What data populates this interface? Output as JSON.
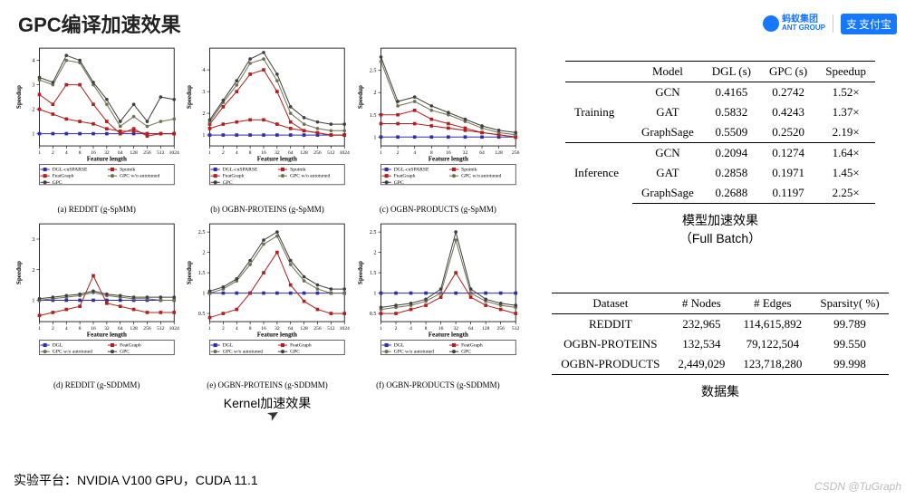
{
  "title": "GPC编译加速效果",
  "logos": {
    "ant_cn": "蚂蚁集团",
    "ant_en": "ANT GROUP",
    "alipay": "支付宝"
  },
  "platform": "实验平台：NVIDIA V100 GPU，CUDA 11.1",
  "watermark": "CSDN @TuGraph",
  "kernel_label": "Kernel加速效果",
  "charts": {
    "common": {
      "xlabel": "Feature length",
      "ylabel": "Speedup",
      "label_fontsize": 9,
      "tick_fontsize": 7,
      "colors": {
        "dgl_cusparse": "#2e2ea8",
        "dgl": "#2e2ea8",
        "sputnik": "#b02020",
        "featgraph": "#b02020",
        "gpc_no_auto": "#707050",
        "gpc": "#404040"
      },
      "markers": {
        "dgl_cusparse": "square",
        "dgl": "square",
        "sputnik": "square",
        "featgraph": "square",
        "gpc_no_auto": "circle",
        "gpc": "circle"
      }
    },
    "panels": [
      {
        "id": "a",
        "caption": "(a) REDDIT (g-SpMM)",
        "legend": [
          "DGL-cuSPARSE",
          "Sputnik",
          "FeatGraph",
          "GPC w/o autotuned",
          "GPC"
        ],
        "xticks": [
          "1",
          "2",
          "4",
          "8",
          "16",
          "32",
          "64",
          "128",
          "256",
          "512",
          "1024"
        ],
        "yticks": [
          1,
          2,
          3,
          4
        ],
        "ylim": [
          0.5,
          4.5
        ],
        "series": {
          "dgl_cusparse": [
            1,
            1,
            1,
            1,
            1,
            1,
            1,
            1,
            1,
            1,
            1
          ],
          "sputnik": [
            2.6,
            2.2,
            3.0,
            3.0,
            2.2,
            1.5,
            1.0,
            1.2,
            0.9,
            1.0,
            1.0
          ],
          "featgraph": [
            2.0,
            1.8,
            1.6,
            1.5,
            1.4,
            1.2,
            1.1,
            1.1,
            1.0,
            1.0,
            1.0
          ],
          "gpc_no_auto": [
            3.2,
            3.0,
            4.0,
            3.9,
            3.0,
            2.2,
            1.3,
            1.7,
            1.3,
            1.5,
            1.6
          ],
          "gpc": [
            3.3,
            3.1,
            4.2,
            4.0,
            3.1,
            2.4,
            1.5,
            2.2,
            1.5,
            2.5,
            2.4
          ]
        }
      },
      {
        "id": "b",
        "caption": "(b) OGBN-PROTEINS (g-SpMM)",
        "legend": [
          "DGL-cuSPARSE",
          "Sputnik",
          "FeatGraph",
          "GPC w/o autotuned",
          "GPC"
        ],
        "xticks": [
          "1",
          "2",
          "4",
          "8",
          "16",
          "32",
          "64",
          "128",
          "256",
          "512",
          "1024"
        ],
        "yticks": [
          1,
          2,
          3,
          4
        ],
        "ylim": [
          0.5,
          5.0
        ],
        "series": {
          "dgl_cusparse": [
            1,
            1,
            1,
            1,
            1,
            1,
            1,
            1,
            1,
            1,
            1
          ],
          "sputnik": [
            1.5,
            2.3,
            3.0,
            3.8,
            4.0,
            3.0,
            1.6,
            1.2,
            1.1,
            1.0,
            1.0
          ],
          "featgraph": [
            1.3,
            1.5,
            1.6,
            1.7,
            1.7,
            1.5,
            1.3,
            1.2,
            1.1,
            1.0,
            1.0
          ],
          "gpc_no_auto": [
            1.6,
            2.5,
            3.3,
            4.3,
            4.5,
            3.5,
            2.0,
            1.5,
            1.3,
            1.2,
            1.2
          ],
          "gpc": [
            1.7,
            2.6,
            3.5,
            4.5,
            4.8,
            3.8,
            2.3,
            1.8,
            1.6,
            1.5,
            1.5
          ]
        }
      },
      {
        "id": "c",
        "caption": "(c) OGBN-PRODUCTS (g-SpMM)",
        "legend": [
          "DGL-cuSPARSE",
          "Sputnik",
          "FeatGraph",
          "GPC w/o autotuned",
          "GPC"
        ],
        "xticks": [
          "1",
          "2",
          "4",
          "8",
          "16",
          "32",
          "64",
          "128",
          "256"
        ],
        "yticks": [
          1.0,
          1.5,
          2.0,
          2.5
        ],
        "ylim": [
          0.8,
          3.0
        ],
        "series": {
          "dgl_cusparse": [
            1,
            1,
            1,
            1,
            1,
            1,
            1,
            1,
            1
          ],
          "sputnik": [
            1.5,
            1.5,
            1.6,
            1.4,
            1.3,
            1.2,
            1.1,
            1.05,
            1.0
          ],
          "featgraph": [
            1.3,
            1.3,
            1.3,
            1.25,
            1.2,
            1.15,
            1.1,
            1.05,
            1.0
          ],
          "gpc_no_auto": [
            2.7,
            1.7,
            1.8,
            1.6,
            1.5,
            1.35,
            1.2,
            1.1,
            1.05
          ],
          "gpc": [
            2.8,
            1.8,
            1.9,
            1.7,
            1.55,
            1.4,
            1.25,
            1.15,
            1.1
          ]
        }
      },
      {
        "id": "d",
        "caption": "(d) REDDIT (g-SDDMM)",
        "legend": [
          "DGL",
          "FeatGraph",
          "GPC w/o autotuned",
          "GPC"
        ],
        "xticks": [
          "1",
          "2",
          "4",
          "8",
          "16",
          "32",
          "64",
          "128",
          "256",
          "512",
          "1024"
        ],
        "yticks": [
          1,
          2,
          3
        ],
        "ylim": [
          0.3,
          3.5
        ],
        "series": {
          "dgl": [
            1,
            1,
            1,
            1,
            1,
            1,
            1,
            1,
            1,
            1,
            1
          ],
          "featgraph": [
            0.5,
            0.6,
            0.7,
            0.8,
            1.8,
            0.9,
            0.8,
            0.7,
            0.6,
            0.6,
            0.6
          ],
          "gpc_no_auto": [
            1.0,
            1.05,
            1.1,
            1.15,
            1.25,
            1.15,
            1.1,
            1.05,
            1.05,
            1.0,
            1.0
          ],
          "gpc": [
            1.05,
            1.1,
            1.15,
            1.2,
            1.3,
            1.2,
            1.15,
            1.1,
            1.1,
            1.1,
            1.1
          ]
        }
      },
      {
        "id": "e",
        "caption": "(e) OGBN-PROTEINS (g-SDDMM)",
        "legend": [
          "DGL",
          "FeatGraph",
          "GPC w/o autotuned",
          "GPC"
        ],
        "xticks": [
          "1",
          "2",
          "4",
          "8",
          "16",
          "32",
          "64",
          "128",
          "256",
          "512",
          "1024"
        ],
        "yticks": [
          0.5,
          1.0,
          1.5,
          2.0,
          2.5
        ],
        "ylim": [
          0.3,
          2.7
        ],
        "series": {
          "dgl": [
            1,
            1,
            1,
            1,
            1,
            1,
            1,
            1,
            1,
            1,
            1
          ],
          "featgraph": [
            0.4,
            0.5,
            0.6,
            1.0,
            1.5,
            2.0,
            1.2,
            0.8,
            0.6,
            0.5,
            0.5
          ],
          "gpc_no_auto": [
            1.0,
            1.1,
            1.3,
            1.7,
            2.2,
            2.4,
            1.7,
            1.3,
            1.1,
            1.0,
            1.0
          ],
          "gpc": [
            1.05,
            1.15,
            1.35,
            1.8,
            2.3,
            2.5,
            1.8,
            1.4,
            1.2,
            1.1,
            1.1
          ]
        }
      },
      {
        "id": "f",
        "caption": "(f) OGBN-PRODUCTS (g-SDDMM)",
        "legend": [
          "DGL",
          "FeatGraph",
          "GPC w/o autotuned",
          "GPC"
        ],
        "xticks": [
          "1",
          "2",
          "4",
          "8",
          "16",
          "32",
          "64",
          "128",
          "256",
          "512"
        ],
        "yticks": [
          0.5,
          1.0,
          1.5,
          2.0,
          2.5
        ],
        "ylim": [
          0.3,
          2.7
        ],
        "series": {
          "dgl": [
            1,
            1,
            1,
            1,
            1,
            1,
            1,
            1,
            1,
            1
          ],
          "featgraph": [
            0.5,
            0.5,
            0.6,
            0.7,
            0.9,
            1.5,
            0.9,
            0.7,
            0.6,
            0.5
          ],
          "gpc_no_auto": [
            0.6,
            0.65,
            0.7,
            0.8,
            1.0,
            2.3,
            1.0,
            0.8,
            0.7,
            0.65
          ],
          "gpc": [
            0.65,
            0.7,
            0.75,
            0.85,
            1.1,
            2.5,
            1.1,
            0.85,
            0.75,
            0.7
          ]
        }
      }
    ]
  },
  "table1": {
    "caption_cn": "模型加速效果",
    "caption_en": "（Full Batch）",
    "headers": [
      "",
      "Model",
      "DGL (s)",
      "GPC (s)",
      "Speedup"
    ],
    "groups": [
      {
        "name": "Training",
        "rows": [
          [
            "GCN",
            "0.4165",
            "0.2742",
            "1.52×"
          ],
          [
            "GAT",
            "0.5832",
            "0.4243",
            "1.37×"
          ],
          [
            "GraphSage",
            "0.5509",
            "0.2520",
            "2.19×"
          ]
        ]
      },
      {
        "name": "Inference",
        "rows": [
          [
            "GCN",
            "0.2094",
            "0.1274",
            "1.64×"
          ],
          [
            "GAT",
            "0.2858",
            "0.1971",
            "1.45×"
          ],
          [
            "GraphSage",
            "0.2688",
            "0.1197",
            "2.25×"
          ]
        ]
      }
    ]
  },
  "table2": {
    "caption": "数据集",
    "headers": [
      "Dataset",
      "# Nodes",
      "# Edges",
      "Sparsity( %)"
    ],
    "rows": [
      [
        "REDDIT",
        "232,965",
        "114,615,892",
        "99.789"
      ],
      [
        "OGBN-PROTEINS",
        "132,534",
        "79,122,504",
        "99.550"
      ],
      [
        "OGBN-PRODUCTS",
        "2,449,029",
        "123,718,280",
        "99.998"
      ]
    ]
  }
}
